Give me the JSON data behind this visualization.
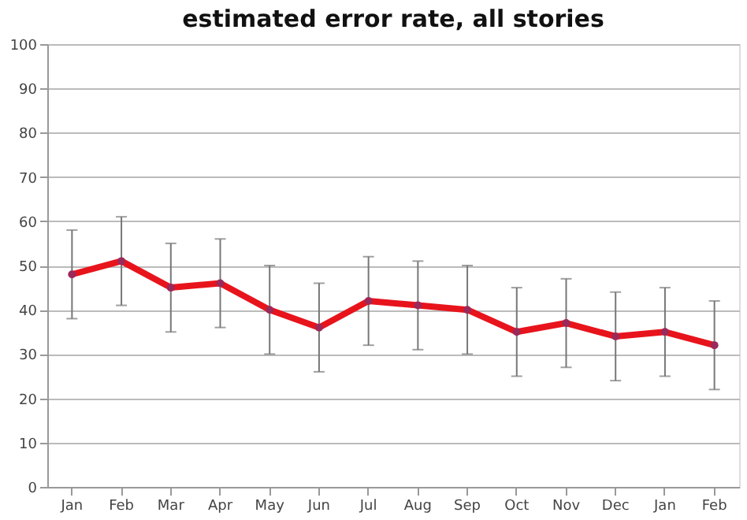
{
  "chart_data": {
    "type": "line",
    "title": "estimated error rate, all stories",
    "categories": [
      "Jan",
      "Feb",
      "Mar",
      "Apr",
      "May",
      "Jun",
      "Jul",
      "Aug",
      "Sep",
      "Oct",
      "Nov",
      "Dec",
      "Jan",
      "Feb"
    ],
    "series": [
      {
        "color": "#e8141c",
        "values": [
          48,
          51,
          45,
          46,
          40,
          36,
          42,
          41,
          40,
          35,
          37,
          34,
          35,
          32
        ],
        "errors": [
          10,
          10,
          10,
          10,
          10,
          10,
          10,
          10,
          10,
          10,
          10,
          10,
          10,
          10
        ]
      }
    ],
    "ylim": [
      0,
      100
    ],
    "yticks": [
      0,
      10,
      20,
      30,
      40,
      50,
      60,
      70,
      80,
      90,
      100
    ],
    "grid": "y",
    "marker": "circle",
    "line_style": "solid"
  }
}
